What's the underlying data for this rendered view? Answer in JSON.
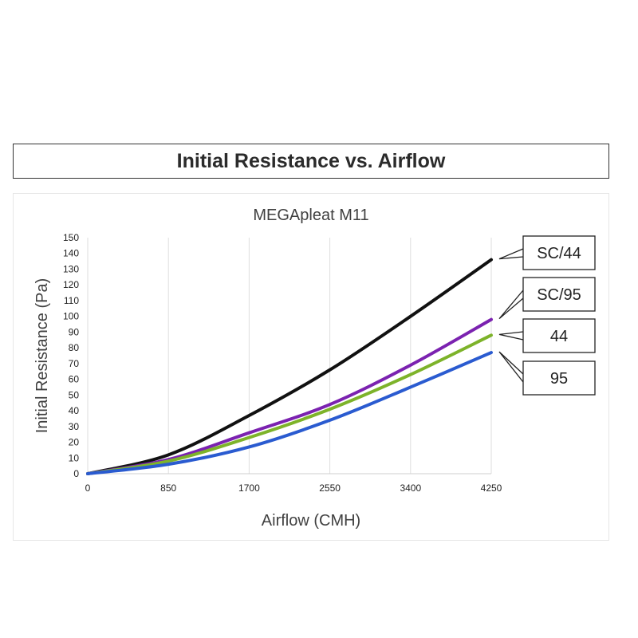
{
  "header": {
    "title": "Initial Resistance vs. Airflow"
  },
  "chart_data": {
    "type": "line",
    "title": "MEGApleat M11",
    "xlabel": "Airflow (CMH)",
    "ylabel": "Initial Resistance (Pa)",
    "xlim": [
      0,
      4250
    ],
    "ylim": [
      0,
      150
    ],
    "xticks": [
      0,
      850,
      1700,
      2550,
      3400,
      4250
    ],
    "yticks": [
      0,
      10,
      20,
      30,
      40,
      50,
      60,
      70,
      80,
      90,
      100,
      110,
      120,
      130,
      140,
      150
    ],
    "grid": "vertical",
    "legend": "callout-boxes-right",
    "x": [
      0,
      850,
      1700,
      2550,
      3400,
      4250
    ],
    "series": [
      {
        "name": "SC/44",
        "color": "#111111",
        "values": [
          0,
          12,
          37,
          66,
          100,
          136
        ]
      },
      {
        "name": "SC/95",
        "color": "#7b22b0",
        "values": [
          0,
          9,
          26,
          44,
          69,
          98
        ]
      },
      {
        "name": "44",
        "color": "#7db32a",
        "values": [
          0,
          8,
          23,
          41,
          63,
          88
        ]
      },
      {
        "name": "95",
        "color": "#2a5bd0",
        "values": [
          0,
          6,
          17,
          34,
          55,
          77
        ]
      }
    ]
  }
}
